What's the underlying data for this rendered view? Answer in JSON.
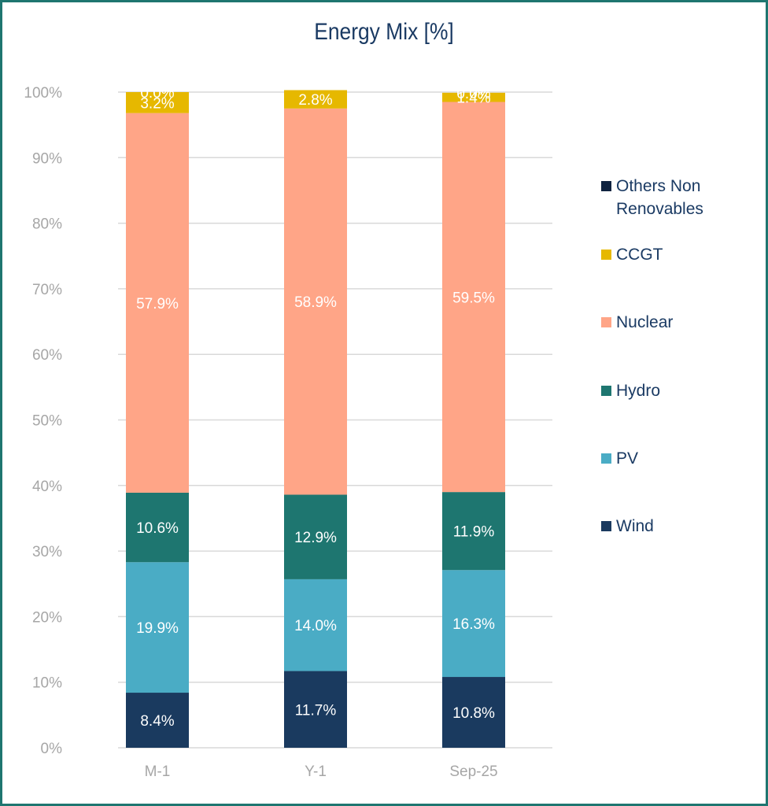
{
  "chart_data": {
    "type": "bar",
    "stacked": true,
    "title": "Energy Mix [%]",
    "xlabel": "",
    "ylabel": "",
    "ylim": [
      0,
      100
    ],
    "yticks": [
      "0%",
      "10%",
      "20%",
      "30%",
      "40%",
      "50%",
      "60%",
      "70%",
      "80%",
      "90%",
      "100%"
    ],
    "grid": true,
    "legend_position": "right",
    "categories": [
      "M-1",
      "Y-1",
      "Sep-25"
    ],
    "series": [
      {
        "name": "Wind",
        "color": "#1a3a5f",
        "values": [
          8.4,
          11.7,
          10.8
        ],
        "labels": [
          "8.4%",
          "11.7%",
          "10.8%"
        ]
      },
      {
        "name": "PV",
        "color": "#4aacc5",
        "values": [
          19.9,
          14.0,
          16.3
        ],
        "labels": [
          "19.9%",
          "14.0%",
          "16.3%"
        ]
      },
      {
        "name": "Hydro",
        "color": "#1e7670",
        "values": [
          10.6,
          12.9,
          11.9
        ],
        "labels": [
          "10.6%",
          "12.9%",
          "11.9%"
        ]
      },
      {
        "name": "Nuclear",
        "color": "#ffa587",
        "values": [
          57.9,
          58.9,
          59.5
        ],
        "labels": [
          "57.9%",
          "58.9%",
          "59.5%"
        ]
      },
      {
        "name": "CCGT",
        "color": "#e6b800",
        "values": [
          3.2,
          2.8,
          1.4
        ],
        "labels": [
          "3.2%",
          "2.8%",
          "1.4%"
        ]
      },
      {
        "name": "Others Non Renovables",
        "color": "#0f2340",
        "values": [
          0.0,
          0.0,
          0.0
        ],
        "labels": [
          "0.0%",
          "",
          "0.0%"
        ]
      }
    ],
    "legend": [
      {
        "name": "Others Non\nRenovables",
        "color": "#0f2340"
      },
      {
        "name": "CCGT",
        "color": "#e6b800"
      },
      {
        "name": "Nuclear",
        "color": "#ffa587"
      },
      {
        "name": "Hydro",
        "color": "#1e7670"
      },
      {
        "name": "PV",
        "color": "#4aacc5"
      },
      {
        "name": "Wind",
        "color": "#1a3a5f"
      }
    ]
  }
}
